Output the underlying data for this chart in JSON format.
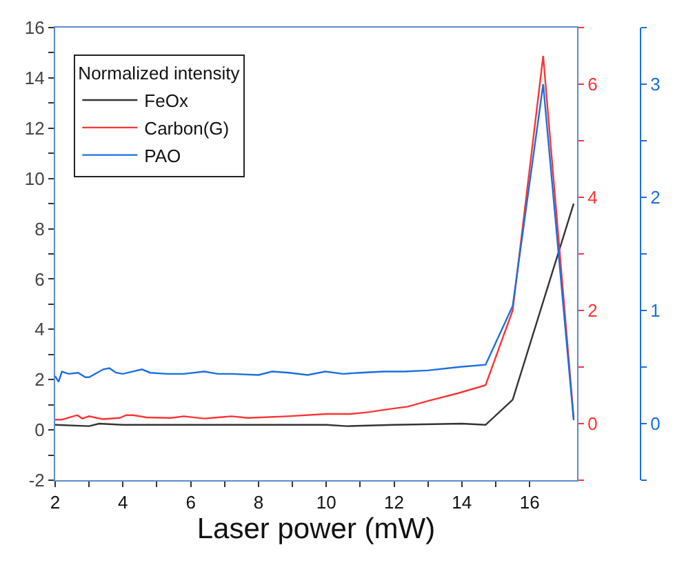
{
  "chart_data": {
    "type": "line",
    "xlabel": "Laser power (mW)",
    "legend_title": "Normalized intensity",
    "legend": "top left",
    "grid": false,
    "xlim": [
      2,
      17.4
    ],
    "xticks": [
      2,
      {
        "value": 3,
        "label": null
      },
      4,
      {
        "value": 5,
        "label": null
      },
      6,
      {
        "value": 7,
        "label": null
      },
      8,
      {
        "value": 9,
        "label": null
      },
      10,
      {
        "value": 11,
        "label": null
      },
      12,
      {
        "value": 13,
        "label": null
      },
      14,
      {
        "value": 15,
        "label": null
      },
      16
    ],
    "ylim": [
      -2,
      16
    ],
    "yticks": [
      -2,
      {
        "value": -1,
        "label": null
      },
      0,
      {
        "value": 1,
        "label": null
      },
      2,
      {
        "value": 3,
        "label": null
      },
      4,
      {
        "value": 5,
        "label": null
      },
      6,
      {
        "value": 7,
        "label": null
      },
      8,
      {
        "value": 9,
        "label": null
      },
      10,
      {
        "value": 11,
        "label": null
      },
      12,
      {
        "value": 13,
        "label": null
      },
      14,
      {
        "value": 15,
        "label": null
      },
      16
    ],
    "y2lim": [
      -1,
      7
    ],
    "y2ticks": [
      {
        "value": -1,
        "label": null
      },
      0,
      {
        "value": 1,
        "label": null
      },
      2,
      {
        "value": 3,
        "label": null
      },
      4,
      {
        "value": 5,
        "label": null
      },
      6,
      {
        "value": 7,
        "label": null
      }
    ],
    "y3lim": [
      -0.5,
      3.5
    ],
    "y3ticks": [
      {
        "value": -0.5,
        "label": null
      },
      0,
      {
        "value": 0.5,
        "label": null
      },
      1,
      {
        "value": 1.5,
        "label": null
      },
      2,
      {
        "value": 2.5,
        "label": null
      },
      3,
      {
        "value": 3.5,
        "label": null
      }
    ],
    "series": [
      {
        "name": "FeOx",
        "color": "#333333",
        "x": [
          2.0,
          3.0,
          3.3,
          4.0,
          6.0,
          8.0,
          10.0,
          10.6,
          12.0,
          14.0,
          14.7,
          15.5,
          17.3
        ],
        "values": [
          0.2,
          0.15,
          0.25,
          0.2,
          0.2,
          0.2,
          0.2,
          0.15,
          0.2,
          0.25,
          0.2,
          1.2,
          9.0
        ]
      },
      {
        "name": "Carbon(G)",
        "color": "#ff3333",
        "axis": "y2",
        "x": [
          2.0,
          2.2,
          2.65,
          2.8,
          3.0,
          3.4,
          3.9,
          4.1,
          4.3,
          4.7,
          5.4,
          5.8,
          6.4,
          6.8,
          7.2,
          7.7,
          8.85,
          10.0,
          10.7,
          11.2,
          11.9,
          12.4,
          13.0,
          13.9,
          14.7,
          15.5,
          16.4,
          17.3
        ],
        "values": [
          0.07,
          0.07,
          0.15,
          0.09,
          0.13,
          0.08,
          0.1,
          0.15,
          0.15,
          0.11,
          0.1,
          0.13,
          0.09,
          0.11,
          0.13,
          0.1,
          0.13,
          0.17,
          0.17,
          0.2,
          0.26,
          0.3,
          0.4,
          0.54,
          0.68,
          2.0,
          6.5,
          0.1
        ]
      },
      {
        "name": "PAO",
        "color": "#1a6fe0",
        "axis": "y3",
        "x": [
          2.0,
          2.1,
          2.2,
          2.4,
          2.68,
          2.89,
          3.0,
          3.42,
          3.6,
          3.8,
          4.0,
          4.56,
          4.8,
          5.3,
          5.8,
          6.4,
          6.8,
          7.2,
          8.0,
          8.4,
          8.9,
          9.45,
          9.97,
          10.5,
          11.0,
          11.7,
          12.3,
          13.0,
          13.9,
          14.7,
          15.5,
          16.4,
          17.3
        ],
        "values": [
          0.42,
          0.37,
          0.46,
          0.44,
          0.45,
          0.41,
          0.41,
          0.48,
          0.49,
          0.45,
          0.44,
          0.48,
          0.45,
          0.44,
          0.44,
          0.46,
          0.44,
          0.44,
          0.43,
          0.46,
          0.45,
          0.43,
          0.46,
          0.44,
          0.45,
          0.46,
          0.46,
          0.47,
          0.5,
          0.52,
          1.04,
          3.0,
          0.03
        ]
      }
    ]
  }
}
